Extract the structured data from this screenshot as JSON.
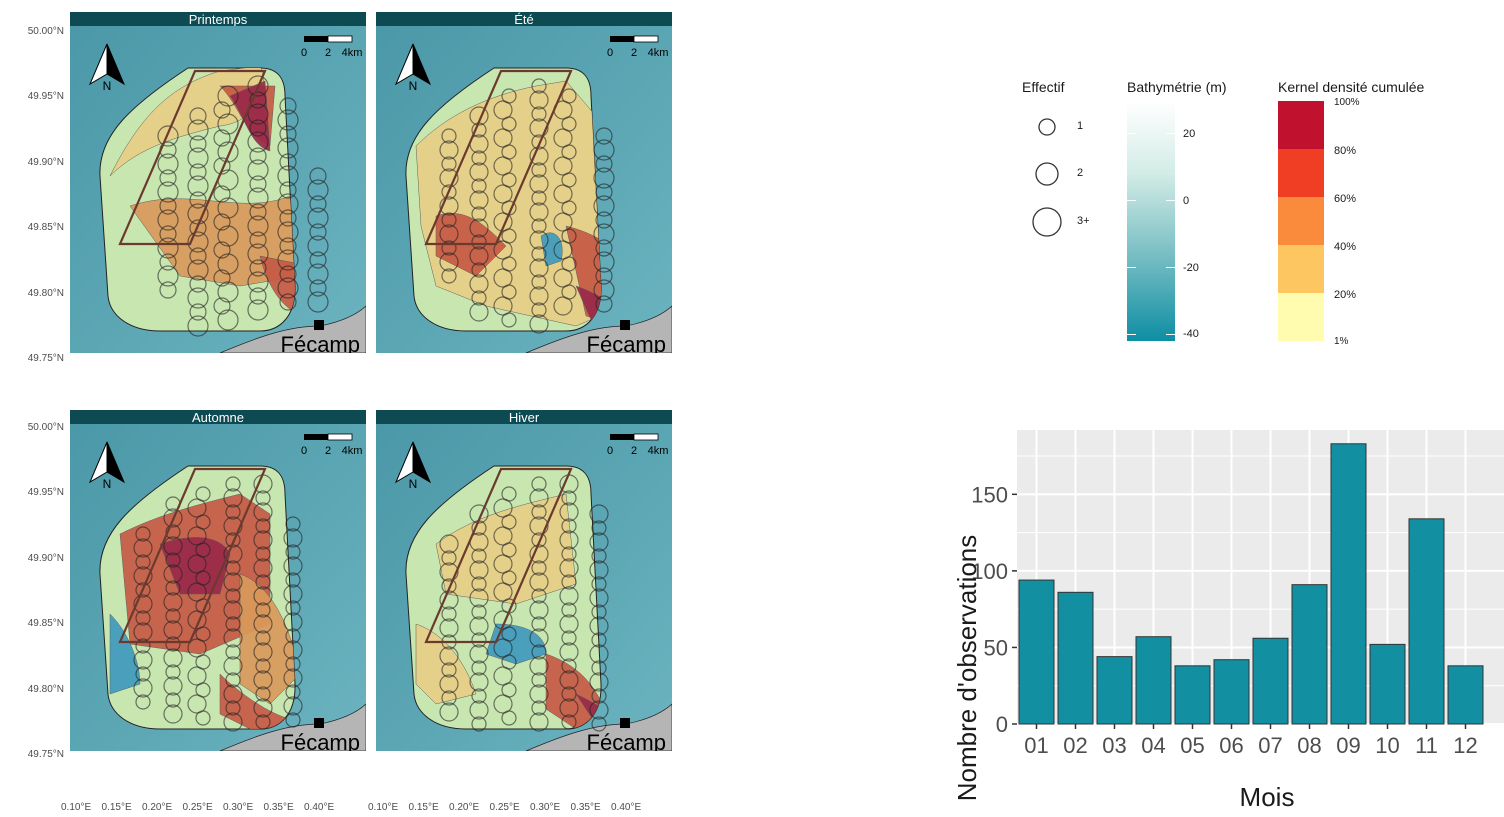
{
  "maps": {
    "seasons": [
      {
        "label": "Printemps"
      },
      {
        "label": "Été"
      },
      {
        "label": "Automne"
      },
      {
        "label": "Hiver"
      }
    ],
    "lat_labels": [
      "50.00°N",
      "49.95°N",
      "49.90°N",
      "49.85°N",
      "49.80°N",
      "49.75°N"
    ],
    "lon_labels": [
      "0.10°E",
      "0.15°E",
      "0.20°E",
      "0.25°E",
      "0.30°E",
      "0.35°E",
      "0.40°E"
    ],
    "scale_labels": [
      "0",
      "2",
      "4km"
    ],
    "north_label": "N",
    "town_label": "Fécamp",
    "colors": {
      "sea": "#5aa3b1",
      "land": "#b5b5b5",
      "strip": "#0d4a52"
    }
  },
  "legend": {
    "effectif": {
      "title": "Effectif",
      "items": [
        "1",
        "2",
        "3+"
      ]
    },
    "bathymetry": {
      "title": "Bathymétrie (m)",
      "ticks": [
        "20",
        "0",
        "-20",
        "-40"
      ],
      "colors": [
        "#ffffff",
        "#0e8ea3"
      ]
    },
    "kernel": {
      "title": "Kernel densité cumulée",
      "labels": [
        "100%",
        "80%",
        "60%",
        "40%",
        "20%",
        "1%"
      ],
      "colors": [
        "#c0112e",
        "#ef3e23",
        "#fb8b3c",
        "#fec661",
        "#fffcb0"
      ]
    }
  },
  "chart_data": {
    "type": "bar",
    "xlabel": "Mois",
    "ylabel": "Nombre d'observations",
    "categories": [
      "01",
      "02",
      "03",
      "04",
      "05",
      "06",
      "07",
      "08",
      "09",
      "10",
      "11",
      "12"
    ],
    "values": [
      94,
      86,
      44,
      57,
      38,
      42,
      56,
      91,
      183,
      52,
      134,
      38
    ],
    "yticks": [
      0,
      50,
      100,
      150
    ],
    "ylim": [
      0,
      192
    ],
    "bar_color": "#138fa2",
    "panel_color": "#ebebeb",
    "grid": true
  }
}
